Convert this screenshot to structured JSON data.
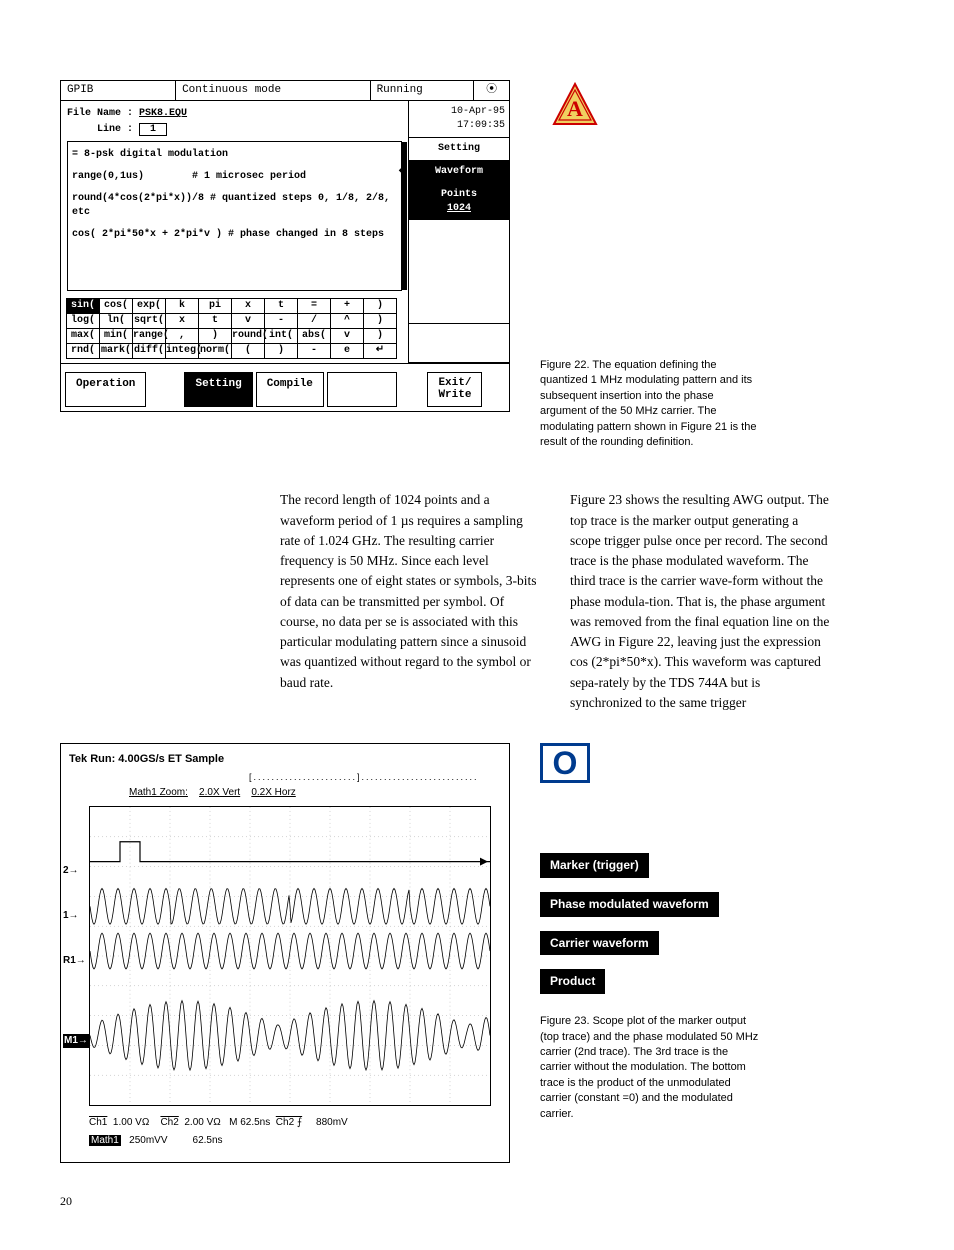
{
  "awg": {
    "topLeft": "GPIB",
    "topMid": "Continuous mode",
    "topRight": "Running",
    "dateTime": "10-Apr-95 17:09:35",
    "sideSetting": "Setting",
    "sideWaveform": "Waveform",
    "sidePoints": "Points",
    "sidePointsVal": "1024",
    "fnLabel": "File Name :",
    "fileName": "PSK8.EQU",
    "lineLabel": "Line :",
    "lineVal": "1",
    "l1": "= 8-psk digital modulation",
    "l2a": "range(0,1us)",
    "l2b": "# 1 microsec period",
    "l3": "round(4*cos(2*pi*x))/8  # quantized steps 0, 1/8, 2/8, etc",
    "l4": "cos( 2*pi*50*x + 2*pi*v )  # phase changed in 8 steps",
    "keypad": [
      [
        "sin(",
        "cos(",
        "exp(",
        "k",
        "pi",
        "x",
        "t",
        "=",
        "+",
        ")"
      ],
      [
        "log(",
        "ln(",
        "sqrt(",
        "x",
        "t",
        "v",
        "-",
        "/",
        "^",
        ")"
      ],
      [
        "max(",
        "min(",
        "range(",
        ",",
        ")",
        "round(",
        "int(",
        "abs(",
        "v",
        ")"
      ],
      [
        "rnd(",
        "mark(",
        "diff(",
        "integ(",
        "norm(",
        "(",
        ")",
        "-",
        "e",
        "↵"
      ]
    ],
    "keypadInvRow": 0,
    "keypadInvCol": 0,
    "btnOperation": "Operation",
    "btnSetting": "Setting",
    "btnCompile": "Compile",
    "btnExit": "Exit/\nWrite"
  },
  "fig22": "Figure 22. The equation defining the quantized 1 MHz modulating pattern and its subsequent insertion into the phase argument of the 50 MHz carrier. The modulating pattern shown in Figure 21 is the result of the rounding definition.",
  "para1": "The record length of 1024 points and a waveform period of 1 µs requires a sampling rate of 1.024 GHz. The resulting carrier frequency is 50 MHz. Since each level represents one of eight states or symbols, 3-bits of data can be transmitted per symbol. Of course, no data per se is associated with this particular modulating pattern since a sinusoid was quantized without regard to the symbol or baud rate.",
  "para2": "Figure 23 shows the resulting AWG output. The top trace is the marker output generating a scope trigger pulse once per record. The second trace is the phase modulated waveform. The third trace is the carrier wave-form without the phase modula-tion. That is, the phase argument was removed from the final equation line on the AWG in Figure 22, leaving just the expression cos (2*pi*50*x). This waveform was captured sepa-rately by the TDS 744A but is synchronized to the same trigger",
  "scope": {
    "title": "Tek Run: 4.00GS/s ET Sample",
    "zoom": "Math1 Zoom:",
    "zv": "2.0X Vert",
    "zh": "0.2X Horz",
    "y2": "2→",
    "y1": "1→",
    "yr": "R1→",
    "ym": "M1→",
    "bLine1a": "Ch1",
    "bLine1b": "1.00 VΩ",
    "bLine1c": "Ch2",
    "bLine1d": "2.00 VΩ",
    "bLine1e": "M 62.5ns",
    "bLine1f": "Ch2 ⨍",
    "bLine1g": "880mV",
    "bLine2a": "Math1",
    "bLine2b": "250mVV",
    "bLine2c": "62.5ns"
  },
  "labels": {
    "l1": "Marker (trigger)",
    "l2": "Phase modulated waveform",
    "l3": "Carrier waveform",
    "l4": "Product"
  },
  "fig23": "Figure 23. Scope plot of the marker output (top trace) and the phase modulated 50 MHz carrier (2nd trace). The 3rd trace is the carrier without the modulation. The bottom trace is the product of the unmodulated carrier (constant   =0) and the modulated carrier.",
  "pagenum": "20",
  "oBadge": "O"
}
